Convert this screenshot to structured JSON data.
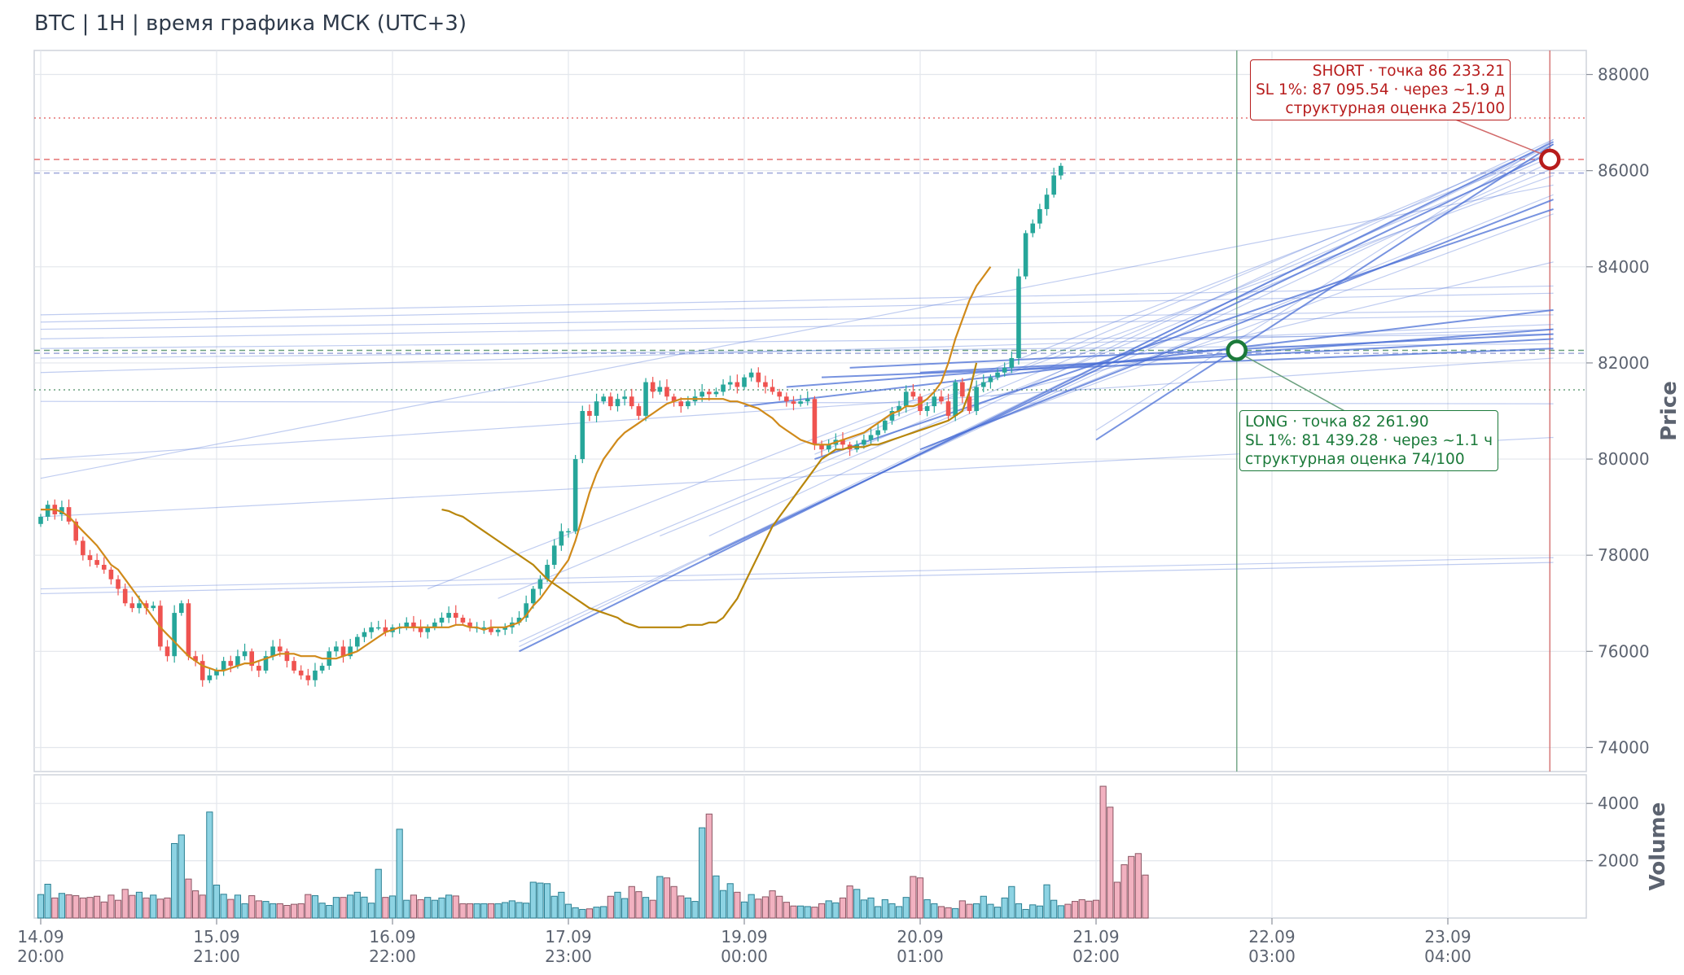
{
  "title": "BTC | 1H | время графика МСК (UTC+3)",
  "colors": {
    "up": "#26a69a",
    "down": "#ef5350",
    "vol_up": "#8dd3e3",
    "vol_down": "#f2b1c0",
    "ma_fast": "#d08a1a",
    "ma_slow": "#b8860b",
    "trend": "#4a6fd6",
    "short": "#b71c1c",
    "long": "#1b7a3a",
    "grid": "#e3e6ec"
  },
  "chart_data": {
    "type": "candlestick",
    "price_axis": {
      "label": "Price",
      "ylim": [
        73500,
        88500
      ],
      "ticks": [
        74000,
        76000,
        78000,
        80000,
        82000,
        84000,
        86000,
        88000
      ]
    },
    "volume_axis": {
      "label": "Volume",
      "ylim": [
        0,
        5000
      ],
      "ticks": [
        2000,
        4000
      ]
    },
    "x_ticks": [
      {
        "line1": "14.09",
        "line2": "20:00",
        "bar": 0
      },
      {
        "line1": "15.09",
        "line2": "21:00",
        "bar": 25
      },
      {
        "line1": "16.09",
        "line2": "22:00",
        "bar": 50
      },
      {
        "line1": "17.09",
        "line2": "23:00",
        "bar": 75
      },
      {
        "line1": "19.09",
        "line2": "00:00",
        "bar": 100
      },
      {
        "line1": "20.09",
        "line2": "01:00",
        "bar": 125
      },
      {
        "line1": "21.09",
        "line2": "02:00",
        "bar": 150
      },
      {
        "line1": "22.09",
        "line2": "03:00",
        "bar": 175
      },
      {
        "line1": "23.09",
        "line2": "04:00",
        "bar": 200
      }
    ],
    "closes": [
      78800,
      79050,
      78850,
      79000,
      78700,
      78300,
      78000,
      77900,
      77800,
      77700,
      77500,
      77300,
      77000,
      76900,
      77000,
      76900,
      76950,
      76100,
      75900,
      76800,
      77000,
      75900,
      75800,
      75400,
      75500,
      75600,
      75800,
      75700,
      75900,
      76000,
      75700,
      75600,
      75900,
      76100,
      76000,
      75800,
      75600,
      75500,
      75400,
      75600,
      75700,
      76000,
      76100,
      75900,
      76100,
      76300,
      76400,
      76500,
      76500,
      76400,
      76500,
      76500,
      76600,
      76500,
      76400,
      76500,
      76600,
      76700,
      76800,
      76700,
      76600,
      76500,
      76500,
      76500,
      76400,
      76450,
      76500,
      76600,
      76700,
      77000,
      77300,
      77500,
      77800,
      78200,
      78500,
      78500,
      80000,
      81000,
      80900,
      81200,
      81300,
      81100,
      81250,
      81300,
      81100,
      80900,
      81600,
      81400,
      81500,
      81300,
      81200,
      81100,
      81200,
      81300,
      81400,
      81350,
      81400,
      81550,
      81600,
      81500,
      81700,
      81800,
      81600,
      81500,
      81400,
      81300,
      81200,
      81150,
      81200,
      81250,
      80300,
      80200,
      80300,
      80400,
      80300,
      80200,
      80300,
      80400,
      80500,
      80600,
      80800,
      81000,
      81100,
      81400,
      81300,
      81000,
      81100,
      81300,
      81200,
      80900,
      81600,
      81300,
      81000,
      81500,
      81600,
      81700,
      81800,
      81900,
      82100,
      83800,
      84700,
      84900,
      85200,
      85500,
      85900,
      86100
    ],
    "candle_start_bar": 0,
    "volumes": [
      820,
      1180,
      700,
      860,
      810,
      780,
      700,
      720,
      760,
      560,
      800,
      620,
      1000,
      790,
      900,
      700,
      800,
      660,
      700,
      2600,
      2900,
      1360,
      950,
      800,
      3700,
      1150,
      830,
      650,
      800,
      500,
      780,
      600,
      580,
      500,
      500,
      440,
      480,
      500,
      820,
      780,
      520,
      440,
      720,
      720,
      800,
      900,
      730,
      520,
      1700,
      720,
      770,
      3100,
      620,
      800,
      640,
      720,
      620,
      700,
      800,
      770,
      500,
      500,
      500,
      500,
      500,
      500,
      540,
      600,
      540,
      520,
      1250,
      1220,
      1200,
      760,
      900,
      480,
      360,
      300,
      320,
      380,
      400,
      760,
      900,
      680,
      1100,
      920,
      720,
      620,
      1450,
      1400,
      1100,
      770,
      700,
      580,
      3150,
      3630,
      1470,
      960,
      1200,
      900,
      560,
      820,
      660,
      740,
      950,
      760,
      550,
      420,
      420,
      400,
      380,
      500,
      600,
      530,
      700,
      1120,
      1000,
      630,
      700,
      400,
      640,
      500,
      400,
      720,
      1450,
      1400,
      640,
      500,
      400,
      360,
      330,
      600,
      480,
      500,
      760,
      480,
      380,
      700,
      1100,
      500,
      300,
      460,
      420,
      1160,
      620,
      430,
      480,
      580,
      640,
      590,
      620,
      4600,
      3870,
      1250,
      1860,
      2150,
      2250,
      1500
    ],
    "ma_fast": [
      78950,
      78950,
      78950,
      78900,
      78800,
      78650,
      78500,
      78350,
      78200,
      78000,
      77800,
      77700,
      77500,
      77300,
      77100,
      76900,
      76700,
      76500,
      76350,
      76200,
      76050,
      75900,
      75800,
      75700,
      75650,
      75600,
      75600,
      75650,
      75700,
      75750,
      75750,
      75800,
      75850,
      75900,
      75950,
      75950,
      75950,
      75900,
      75900,
      75900,
      75850,
      75850,
      75850,
      75900,
      75950,
      76000,
      76100,
      76200,
      76300,
      76400,
      76450,
      76500,
      76500,
      76500,
      76500,
      76500,
      76500,
      76500,
      76500,
      76550,
      76550,
      76500,
      76500,
      76450,
      76500,
      76500,
      76500,
      76550,
      76600,
      76750,
      76950,
      77100,
      77300,
      77500,
      77700,
      77900,
      78300,
      78800,
      79300,
      79700,
      80000,
      80200,
      80400,
      80550,
      80650,
      80750,
      80850,
      80950,
      81050,
      81150,
      81200,
      81250,
      81250,
      81250,
      81250,
      81250,
      81250,
      81250,
      81200,
      81200,
      81150,
      81100,
      81050,
      80950,
      80850,
      80700,
      80600,
      80500,
      80400,
      80350,
      80300,
      80300,
      80300,
      80350,
      80400,
      80450,
      80500,
      80550,
      80650,
      80750,
      80850,
      80950,
      81000,
      81100,
      81100,
      81150,
      81250,
      81400,
      81600,
      82000,
      82500,
      82900,
      83300,
      83600,
      83800,
      84000
    ],
    "ma_fast_start_bar": 0,
    "ma_slow": [
      78950,
      78920,
      78850,
      78800,
      78700,
      78600,
      78500,
      78400,
      78300,
      78200,
      78100,
      78000,
      77900,
      77800,
      77650,
      77500,
      77400,
      77300,
      77200,
      77100,
      77000,
      76900,
      76850,
      76800,
      76750,
      76700,
      76600,
      76550,
      76500,
      76500,
      76500,
      76500,
      76500,
      76500,
      76500,
      76550,
      76550,
      76550,
      76600,
      76600,
      76700,
      76900,
      77100,
      77400,
      77700,
      78000,
      78300,
      78600,
      78800,
      79000,
      79200,
      79400,
      79600,
      79800,
      80000,
      80100,
      80200,
      80200,
      80250,
      80250,
      80250,
      80300,
      80300,
      80350,
      80400,
      80450,
      80500,
      80550,
      80600,
      80650,
      80700,
      80750,
      80800,
      80900,
      81000,
      81400,
      82000
    ],
    "ma_slow_start_bar": 57,
    "trend_lines": [
      [
        0,
        81800,
        215,
        82700
      ],
      [
        0,
        82100,
        215,
        82400
      ],
      [
        0,
        82300,
        215,
        82600
      ],
      [
        0,
        82500,
        215,
        83000
      ],
      [
        0,
        82700,
        215,
        83100
      ],
      [
        0,
        82850,
        215,
        83450
      ],
      [
        0,
        83000,
        215,
        83600
      ],
      [
        0,
        81200,
        215,
        81150
      ],
      [
        0,
        77200,
        215,
        77850
      ],
      [
        0,
        77300,
        215,
        77950
      ],
      [
        0,
        78800,
        215,
        80450
      ],
      [
        0,
        79600,
        215,
        85700
      ],
      [
        0,
        80000,
        215,
        82100
      ],
      [
        55,
        77300,
        215,
        86400
      ],
      [
        65,
        77100,
        215,
        86300
      ],
      [
        68,
        76100,
        215,
        86550
      ],
      [
        68,
        76200,
        215,
        86200
      ],
      [
        88,
        78400,
        215,
        86050
      ],
      [
        95,
        78400,
        215,
        86650
      ],
      [
        110,
        80100,
        215,
        86550
      ],
      [
        110,
        80300,
        215,
        85900
      ],
      [
        125,
        80200,
        215,
        85500
      ],
      [
        130,
        80500,
        215,
        85100
      ],
      [
        135,
        81300,
        215,
        84100
      ],
      [
        150,
        80600,
        215,
        86650
      ],
      [
        162,
        82500,
        215,
        82800
      ]
    ],
    "trend_lines_strong": [
      [
        68,
        76000,
        215,
        86600
      ],
      [
        95,
        78000,
        215,
        86400
      ],
      [
        110,
        80000,
        215,
        85200
      ],
      [
        125,
        80200,
        215,
        85400
      ],
      [
        150,
        80400,
        215,
        86550
      ],
      [
        100,
        81100,
        215,
        83100
      ],
      [
        106,
        81500,
        215,
        82700
      ],
      [
        111,
        81700,
        215,
        82300
      ],
      [
        115,
        81900,
        215,
        82600
      ],
      [
        125,
        81800,
        215,
        82500
      ]
    ],
    "ref_lines": [
      {
        "price": 87095.54,
        "color": "#e57373",
        "style": "dotted"
      },
      {
        "price": 86233.21,
        "color": "#e57373",
        "style": "dashed"
      },
      {
        "price": 85950,
        "color": "#9fa8da",
        "style": "dashed"
      },
      {
        "price": 82261.9,
        "color": "#6aa07e",
        "style": "dashed"
      },
      {
        "price": 82200,
        "color": "#9fa8da",
        "style": "dashed"
      },
      {
        "price": 81439.28,
        "color": "#6aa07e",
        "style": "dotted"
      }
    ],
    "long_vline_bar": 170,
    "short_vline_bar": 214.5,
    "short_point": {
      "bar": 214.5,
      "price": 86233.21
    },
    "long_point": {
      "bar": 170,
      "price": 82261.9
    }
  },
  "short_label": {
    "line1": "SHORT · точка 86 233.21",
    "line2": "SL 1%: 87 095.54 · через ~1.9 д",
    "line3": "структурная оценка 25/100"
  },
  "long_label": {
    "line1": "LONG · точка 82 261.90",
    "line2": "SL 1%: 81 439.28 · через ~1.1 ч",
    "line3": "структурная оценка 74/100"
  }
}
